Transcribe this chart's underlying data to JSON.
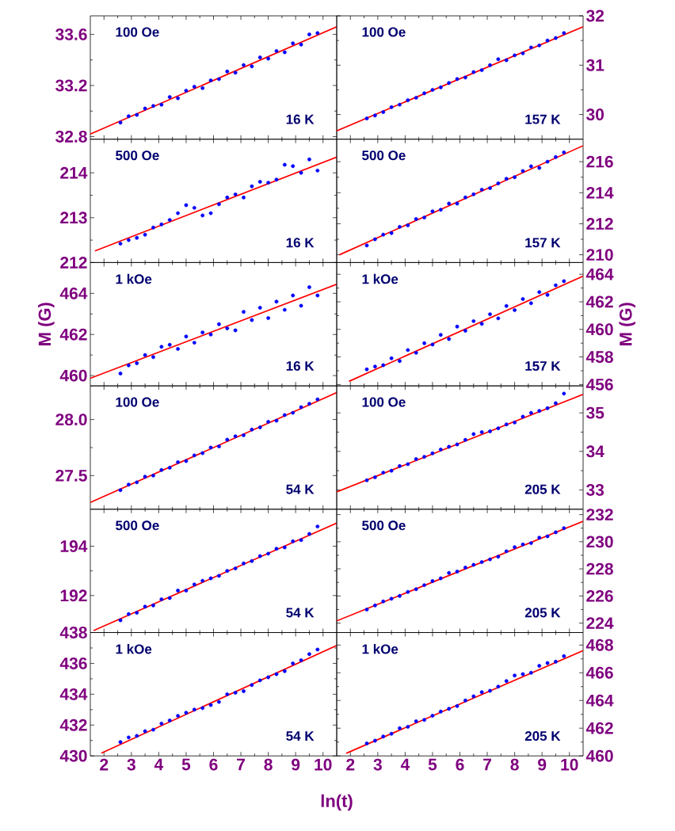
{
  "chart_data": [
    {
      "type": "scatter",
      "tick_labels": "y",
      "xlim": [
        1.5,
        10.5
      ],
      "xticks": [
        2,
        3,
        4,
        5,
        6,
        7,
        8,
        9,
        10
      ],
      "ylim": [
        32.78,
        33.745
      ],
      "yticks": [
        32.8,
        33.2,
        33.6
      ],
      "annotations": [
        "100 Oe",
        "16 K"
      ],
      "x": [
        2.6,
        2.9,
        3.2,
        3.5,
        3.8,
        4.1,
        4.4,
        4.7,
        5.0,
        5.3,
        5.6,
        5.9,
        6.2,
        6.5,
        6.8,
        7.1,
        7.4,
        7.7,
        8.0,
        8.3,
        8.6,
        8.9,
        9.2,
        9.5,
        9.8
      ],
      "series": [
        {
          "marker": "circle",
          "color": "#0000ff",
          "values": [
            32.91,
            32.96,
            32.97,
            33.02,
            33.04,
            33.05,
            33.11,
            33.1,
            33.16,
            33.19,
            33.18,
            33.24,
            33.25,
            33.31,
            33.3,
            33.36,
            33.35,
            33.42,
            33.41,
            33.47,
            33.46,
            33.53,
            33.52,
            33.6,
            33.61
          ]
        },
        {
          "type": "line",
          "color": "#ff0000",
          "x": [
            1.5,
            10.5
          ],
          "values": [
            32.82,
            33.66
          ]
        }
      ]
    },
    {
      "type": "scatter",
      "tick_labels": "y",
      "xlim": [
        1.5,
        10.5
      ],
      "xticks": [
        2,
        3,
        4,
        5,
        6,
        7,
        8,
        9,
        10
      ],
      "ylim": [
        29.5,
        32
      ],
      "yticks": [
        30,
        31,
        32
      ],
      "annotations": [
        "100 Oe",
        "157 K"
      ],
      "x": [
        2.6,
        2.9,
        3.2,
        3.5,
        3.8,
        4.1,
        4.4,
        4.7,
        5.0,
        5.3,
        5.6,
        5.9,
        6.2,
        6.5,
        6.8,
        7.1,
        7.4,
        7.7,
        8.0,
        8.3,
        8.6,
        8.9,
        9.2,
        9.5,
        9.8
      ],
      "series": [
        {
          "marker": "circle",
          "color": "#0000ff",
          "values": [
            29.92,
            29.98,
            30.05,
            30.15,
            30.2,
            30.29,
            30.34,
            30.43,
            30.5,
            30.55,
            30.64,
            30.72,
            30.75,
            30.86,
            30.9,
            31.0,
            31.12,
            31.1,
            31.2,
            31.24,
            31.36,
            31.4,
            31.5,
            31.55,
            31.65
          ]
        },
        {
          "type": "line",
          "color": "#ff0000",
          "x": [
            1.5,
            10.5
          ],
          "values": [
            29.67,
            31.78
          ]
        }
      ]
    },
    {
      "type": "scatter",
      "tick_labels": "y",
      "xlim": [
        1.5,
        10.5
      ],
      "xticks": [
        2,
        3,
        4,
        5,
        6,
        7,
        8,
        9,
        10
      ],
      "ylim": [
        212,
        214.75
      ],
      "yticks": [
        212,
        213,
        214
      ],
      "annotations": [
        "500 Oe",
        "16 K"
      ],
      "x": [
        2.6,
        2.9,
        3.2,
        3.5,
        3.8,
        4.1,
        4.4,
        4.7,
        5.0,
        5.3,
        5.6,
        5.9,
        6.2,
        6.5,
        6.8,
        7.1,
        7.4,
        7.7,
        8.0,
        8.3,
        8.6,
        8.9,
        9.2,
        9.5,
        9.8
      ],
      "series": [
        {
          "marker": "circle",
          "color": "#0000ff",
          "values": [
            212.42,
            212.5,
            212.55,
            212.62,
            212.78,
            212.85,
            212.95,
            213.1,
            213.28,
            213.22,
            213.05,
            213.1,
            213.3,
            213.45,
            213.52,
            213.45,
            213.7,
            213.8,
            213.78,
            213.85,
            214.18,
            214.15,
            214.0,
            214.3,
            214.05
          ]
        },
        {
          "type": "line",
          "color": "#ff0000",
          "x": [
            1.67,
            10.5
          ],
          "values": [
            212.26,
            214.35
          ]
        }
      ]
    },
    {
      "type": "scatter",
      "tick_labels": "y",
      "xlim": [
        1.5,
        10.5
      ],
      "xticks": [
        2,
        3,
        4,
        5,
        6,
        7,
        8,
        9,
        10
      ],
      "ylim": [
        209.5,
        217.45
      ],
      "yticks": [
        210,
        212,
        214,
        216
      ],
      "annotations": [
        "500 Oe",
        "157 K"
      ],
      "x": [
        2.6,
        2.9,
        3.2,
        3.5,
        3.8,
        4.1,
        4.4,
        4.7,
        5.0,
        5.3,
        5.6,
        5.9,
        6.2,
        6.5,
        6.8,
        7.1,
        7.4,
        7.7,
        8.0,
        8.3,
        8.6,
        8.9,
        9.2,
        9.5,
        9.8
      ],
      "series": [
        {
          "marker": "circle",
          "color": "#0000ff",
          "values": [
            210.6,
            211.0,
            211.3,
            211.4,
            211.8,
            211.9,
            212.3,
            212.4,
            212.8,
            212.9,
            213.3,
            213.3,
            213.7,
            213.9,
            214.2,
            214.3,
            214.6,
            214.9,
            215.0,
            215.4,
            215.7,
            215.6,
            216.0,
            216.3,
            216.6
          ]
        },
        {
          "type": "line",
          "color": "#ff0000",
          "x": [
            1.6,
            10.5
          ],
          "values": [
            210,
            217.03
          ]
        }
      ]
    },
    {
      "type": "scatter",
      "tick_labels": "y",
      "xlim": [
        1.5,
        10.5
      ],
      "xticks": [
        2,
        3,
        4,
        5,
        6,
        7,
        8,
        9,
        10
      ],
      "ylim": [
        459.5,
        465.5
      ],
      "yticks": [
        460,
        462,
        464
      ],
      "ylabel": "M  (G)",
      "annotations": [
        "1 kOe",
        "16 K"
      ],
      "x": [
        2.6,
        2.9,
        3.2,
        3.5,
        3.8,
        4.1,
        4.4,
        4.7,
        5.0,
        5.3,
        5.6,
        5.9,
        6.2,
        6.5,
        6.8,
        7.1,
        7.4,
        7.7,
        8.0,
        8.3,
        8.6,
        8.9,
        9.2,
        9.5,
        9.8
      ],
      "series": [
        {
          "marker": "circle",
          "color": "#0000ff",
          "values": [
            460.1,
            460.5,
            460.6,
            461.0,
            460.9,
            461.4,
            461.5,
            461.3,
            461.9,
            461.6,
            462.1,
            462.0,
            462.5,
            462.3,
            462.2,
            463.1,
            462.7,
            463.3,
            462.8,
            463.6,
            463.2,
            463.9,
            463.4,
            464.3,
            463.9
          ]
        },
        {
          "type": "line",
          "color": "#ff0000",
          "x": [
            1.5,
            10.5
          ],
          "values": [
            459.87,
            464.44
          ]
        }
      ]
    },
    {
      "type": "scatter",
      "tick_labels": "y",
      "xlim": [
        1.5,
        10.5
      ],
      "xticks": [
        2,
        3,
        4,
        5,
        6,
        7,
        8,
        9,
        10
      ],
      "ylim": [
        455.9,
        464.85
      ],
      "yticks": [
        456,
        458,
        460,
        462,
        464
      ],
      "ylabel": "M  (G)",
      "annotations": [
        "1 kOe",
        "157 K"
      ],
      "x": [
        2.6,
        2.9,
        3.2,
        3.5,
        3.8,
        4.1,
        4.4,
        4.7,
        5.0,
        5.3,
        5.6,
        5.9,
        6.2,
        6.5,
        6.8,
        7.1,
        7.4,
        7.7,
        8.0,
        8.3,
        8.6,
        8.9,
        9.2,
        9.5,
        9.8
      ],
      "series": [
        {
          "marker": "circle",
          "color": "#0000ff",
          "values": [
            457.1,
            457.3,
            457.4,
            457.9,
            457.7,
            458.5,
            458.3,
            459.0,
            458.9,
            459.6,
            459.3,
            460.2,
            459.9,
            460.6,
            460.4,
            461.1,
            460.8,
            461.7,
            461.4,
            462.2,
            461.9,
            462.7,
            462.5,
            463.2,
            463.5
          ]
        },
        {
          "type": "line",
          "color": "#ff0000",
          "x": [
            1.95,
            10.5
          ],
          "values": [
            456.23,
            463.87
          ]
        }
      ]
    },
    {
      "type": "scatter",
      "tick_labels": "y",
      "xlim": [
        1.5,
        10.5
      ],
      "xticks": [
        2,
        3,
        4,
        5,
        6,
        7,
        8,
        9,
        10
      ],
      "ylim": [
        27.2,
        28.3
      ],
      "yticks": [
        27.5,
        {
          "value": 28,
          "label": "28.0"
        }
      ],
      "annotations": [
        "100 Oe",
        "54 K"
      ],
      "x": [
        2.6,
        2.9,
        3.2,
        3.5,
        3.8,
        4.1,
        4.4,
        4.7,
        5.0,
        5.3,
        5.6,
        5.9,
        6.2,
        6.5,
        6.8,
        7.1,
        7.4,
        7.7,
        8.0,
        8.3,
        8.6,
        8.9,
        9.2,
        9.5,
        9.8
      ],
      "series": [
        {
          "marker": "circle",
          "color": "#0000ff",
          "values": [
            27.37,
            27.42,
            27.44,
            27.49,
            27.5,
            27.55,
            27.57,
            27.62,
            27.63,
            27.68,
            27.7,
            27.75,
            27.76,
            27.82,
            27.85,
            27.86,
            27.91,
            27.93,
            27.98,
            27.99,
            28.04,
            28.06,
            28.11,
            28.14,
            28.18
          ]
        },
        {
          "type": "line",
          "color": "#ff0000",
          "x": [
            1.5,
            10.5
          ],
          "values": [
            27.26,
            28.24
          ]
        }
      ]
    },
    {
      "type": "scatter",
      "tick_labels": "y",
      "xlim": [
        1.5,
        10.5
      ],
      "xticks": [
        2,
        3,
        4,
        5,
        6,
        7,
        8,
        9,
        10
      ],
      "ylim": [
        32.5,
        35.7
      ],
      "yticks": [
        33,
        34,
        35
      ],
      "annotations": [
        "100 Oe",
        "205 K"
      ],
      "x": [
        2.6,
        2.9,
        3.2,
        3.5,
        3.8,
        4.1,
        4.4,
        4.7,
        5.0,
        5.3,
        5.6,
        5.9,
        6.2,
        6.5,
        6.8,
        7.1,
        7.4,
        7.7,
        8.0,
        8.3,
        8.6,
        8.9,
        9.2,
        9.5,
        9.8
      ],
      "series": [
        {
          "marker": "circle",
          "color": "#0000ff",
          "values": [
            33.25,
            33.33,
            33.45,
            33.5,
            33.62,
            33.67,
            33.8,
            33.86,
            33.95,
            34.05,
            34.12,
            34.18,
            34.3,
            34.45,
            34.5,
            34.52,
            34.6,
            34.7,
            34.75,
            34.9,
            35.0,
            35.05,
            35.12,
            35.25,
            35.5
          ]
        },
        {
          "type": "line",
          "color": "#ff0000",
          "x": [
            1.5,
            10.5
          ],
          "values": [
            32.95,
            35.48
          ]
        }
      ]
    },
    {
      "type": "scatter",
      "tick_labels": "y",
      "xlim": [
        1.5,
        10.5
      ],
      "xticks": [
        2,
        3,
        4,
        5,
        6,
        7,
        8,
        9,
        10
      ],
      "ylim": [
        190.5,
        195.5
      ],
      "yticks": [
        192,
        194
      ],
      "annotations": [
        "500 Oe",
        "54 K"
      ],
      "x": [
        2.6,
        2.9,
        3.2,
        3.5,
        3.8,
        4.1,
        4.4,
        4.7,
        5.0,
        5.3,
        5.6,
        5.9,
        6.2,
        6.5,
        6.8,
        7.1,
        7.4,
        7.7,
        8.0,
        8.3,
        8.6,
        8.9,
        9.2,
        9.5,
        9.8
      ],
      "series": [
        {
          "marker": "circle",
          "color": "#0000ff",
          "values": [
            191.0,
            191.25,
            191.3,
            191.55,
            191.6,
            191.85,
            191.9,
            192.2,
            192.2,
            192.45,
            192.6,
            192.7,
            192.8,
            193.0,
            193.1,
            193.3,
            193.4,
            193.6,
            193.7,
            193.9,
            193.95,
            194.2,
            194.25,
            194.5,
            194.8
          ]
        },
        {
          "type": "line",
          "color": "#ff0000",
          "x": [
            1.62,
            10.5
          ],
          "values": [
            190.58,
            194.94
          ]
        }
      ]
    },
    {
      "type": "scatter",
      "tick_labels": "y",
      "xlim": [
        1.5,
        10.5
      ],
      "xticks": [
        2,
        3,
        4,
        5,
        6,
        7,
        8,
        9,
        10
      ],
      "ylim": [
        223.3,
        232.4
      ],
      "yticks": [
        224,
        226,
        228,
        230,
        232
      ],
      "annotations": [
        "500 Oe",
        "205 K"
      ],
      "x": [
        2.6,
        2.9,
        3.2,
        3.5,
        3.8,
        4.1,
        4.4,
        4.7,
        5.0,
        5.3,
        5.6,
        5.9,
        6.2,
        6.5,
        6.8,
        7.1,
        7.4,
        7.7,
        8.0,
        8.3,
        8.6,
        8.9,
        9.2,
        9.5,
        9.8
      ],
      "series": [
        {
          "marker": "circle",
          "color": "#0000ff",
          "values": [
            225.0,
            225.3,
            225.6,
            225.8,
            226.0,
            226.3,
            226.5,
            226.8,
            227.1,
            227.3,
            227.7,
            227.8,
            228.1,
            228.3,
            228.5,
            228.7,
            228.9,
            229.3,
            229.6,
            229.8,
            229.9,
            230.3,
            230.4,
            230.7,
            231.0
          ]
        },
        {
          "type": "line",
          "color": "#ff0000",
          "x": [
            1.5,
            10.5
          ],
          "values": [
            224.16,
            231.51
          ]
        }
      ]
    },
    {
      "type": "scatter",
      "xlim": [
        1.5,
        10.5
      ],
      "xticks": [
        2,
        3,
        4,
        5,
        6,
        7,
        8,
        9,
        10
      ],
      "ylim": [
        430,
        438
      ],
      "yticks": [
        430,
        432,
        434,
        436,
        438
      ],
      "xlabel": "ln(t)",
      "annotations": [
        "1 kOe",
        "54 K"
      ],
      "x": [
        2.6,
        2.9,
        3.2,
        3.5,
        3.8,
        4.1,
        4.4,
        4.7,
        5.0,
        5.3,
        5.6,
        5.9,
        6.2,
        6.5,
        6.8,
        7.1,
        7.4,
        7.7,
        8.0,
        8.3,
        8.6,
        8.9,
        9.2,
        9.5,
        9.8
      ],
      "series": [
        {
          "marker": "circle",
          "color": "#0000ff",
          "values": [
            430.9,
            431.2,
            431.3,
            431.6,
            431.7,
            432.1,
            432.3,
            432.6,
            432.8,
            433.0,
            433.1,
            433.3,
            433.5,
            434.0,
            434.1,
            434.2,
            434.6,
            434.9,
            435.1,
            435.3,
            435.5,
            436.0,
            436.2,
            436.6,
            436.9
          ]
        },
        {
          "type": "line",
          "color": "#ff0000",
          "x": [
            1.9,
            10.5
          ],
          "values": [
            430.18,
            437.16
          ]
        }
      ]
    },
    {
      "type": "scatter",
      "xlim": [
        1.5,
        10.5
      ],
      "xticks": [
        2,
        3,
        4,
        5,
        6,
        7,
        8,
        9,
        10
      ],
      "ylim": [
        460,
        468.9
      ],
      "yticks": [
        460,
        462,
        464,
        466,
        468
      ],
      "annotations": [
        "1 kOe",
        "205 K"
      ],
      "x": [
        2.6,
        2.9,
        3.2,
        3.5,
        3.8,
        4.1,
        4.4,
        4.7,
        5.0,
        5.3,
        5.6,
        5.9,
        6.2,
        6.5,
        6.8,
        7.1,
        7.4,
        7.7,
        8.0,
        8.3,
        8.6,
        8.9,
        9.2,
        9.5,
        9.8
      ],
      "series": [
        {
          "marker": "circle",
          "color": "#0000ff",
          "values": [
            460.9,
            461.1,
            461.4,
            461.6,
            462.0,
            462.1,
            462.5,
            462.6,
            462.9,
            463.2,
            463.4,
            463.6,
            464.0,
            464.3,
            464.6,
            464.7,
            465.0,
            465.4,
            465.8,
            465.9,
            466.0,
            466.5,
            466.7,
            466.8,
            467.2
          ]
        },
        {
          "type": "line",
          "color": "#ff0000",
          "x": [
            1.85,
            10.5
          ],
          "values": [
            460.19,
            467.6
          ]
        }
      ]
    }
  ]
}
